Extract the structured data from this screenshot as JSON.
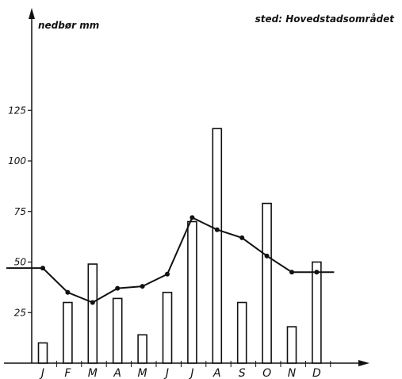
{
  "chart_data": {
    "type": "bar",
    "categories": [
      "J",
      "F",
      "M",
      "A",
      "M",
      "J",
      "J",
      "A",
      "S",
      "O",
      "N",
      "D"
    ],
    "series": [
      {
        "kind": "bar",
        "values": [
          10,
          30,
          49,
          32,
          14,
          35,
          70,
          116,
          30,
          79,
          18,
          50
        ]
      },
      {
        "kind": "line",
        "values": [
          47,
          35,
          30,
          37,
          38,
          44,
          72,
          66,
          62,
          53,
          45,
          45
        ]
      }
    ],
    "ylabel": "nedbør mm",
    "annotation": "sted: Hovedstadsområdet",
    "yticks": [
      "25",
      "50",
      "75",
      "100",
      "125"
    ],
    "ylim": [
      0,
      130
    ],
    "grid": false
  }
}
